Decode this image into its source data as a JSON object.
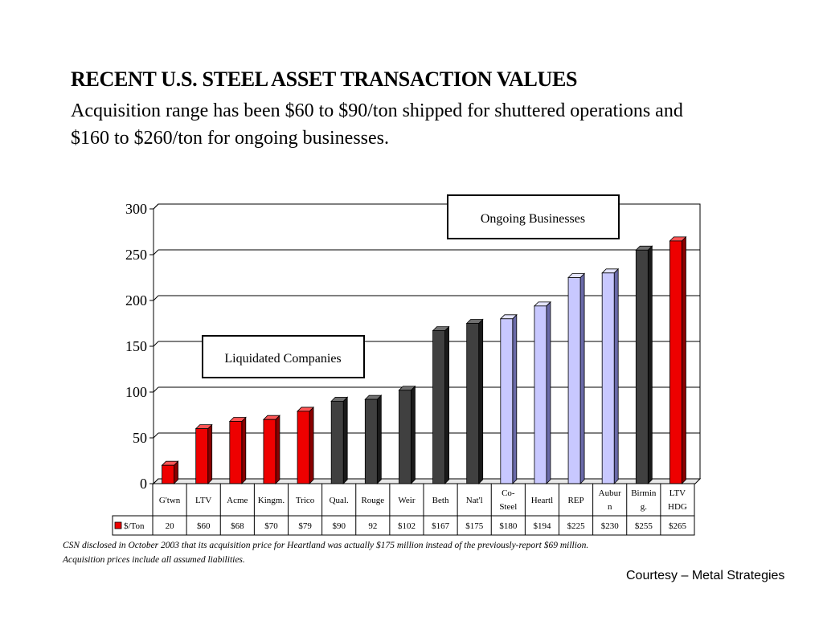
{
  "slide": {
    "title": "RECENT U.S. STEEL ASSET TRANSACTION VALUES",
    "subtitle": "Acquisition range has been $60 to $90/ton shipped for shuttered operations and $160 to $260/ton for ongoing businesses.",
    "footnote_line1": "CSN disclosed in October 2003 that its acquisition price for Heartland was actually $175 million instead of the previously-report $69 million.",
    "footnote_line2": "Acquisition prices include all assumed liabilities.",
    "credit": "Courtesy – Metal Strategies"
  },
  "chart_data": {
    "type": "bar",
    "title": "",
    "xlabel": "",
    "ylabel": "",
    "ylim": [
      0,
      300
    ],
    "yticks": [
      0,
      50,
      100,
      150,
      200,
      250,
      300
    ],
    "grid": true,
    "categories": [
      "G'twn",
      "LTV",
      "Acme",
      "Kingm.",
      "Trico",
      "Qual.",
      "Rouge",
      "Weir",
      "Beth",
      "Nat'l",
      "Co-Steel",
      "Heartl",
      "REP",
      "Auburn",
      "Birming.",
      "LTV HDG"
    ],
    "category_label_lines": [
      [
        "G'twn"
      ],
      [
        "LTV"
      ],
      [
        "Acme"
      ],
      [
        "Kingm."
      ],
      [
        "Trico"
      ],
      [
        "Qual."
      ],
      [
        "Rouge"
      ],
      [
        "Weir"
      ],
      [
        "Beth"
      ],
      [
        "Nat'l"
      ],
      [
        "Co-",
        "Steel"
      ],
      [
        "Heartl"
      ],
      [
        "REP"
      ],
      [
        "Aubur",
        "n"
      ],
      [
        "Birmin",
        "g."
      ],
      [
        "LTV",
        "HDG"
      ]
    ],
    "series": [
      {
        "name": "$/Ton",
        "values": [
          20,
          60,
          68,
          70,
          79,
          90,
          92,
          102,
          167,
          175,
          180,
          194,
          225,
          230,
          255,
          265
        ],
        "table_labels": [
          "20",
          "$60",
          "$68",
          "$70",
          "$79",
          "$90",
          "92",
          "$102",
          "$167",
          "$175",
          "$180",
          "$194",
          "$225",
          "$230",
          "$255",
          "$265"
        ],
        "groups": [
          "red",
          "red",
          "red",
          "red",
          "red",
          "dark",
          "dark",
          "dark",
          "dark",
          "dark",
          "light",
          "light",
          "light",
          "light",
          "dark",
          "red"
        ]
      }
    ],
    "colors": {
      "red": "#ee0000",
      "red_side": "#8a0000",
      "red_top": "#ff5555",
      "dark": "#404040",
      "dark_side": "#1a1a1a",
      "dark_top": "#707070",
      "light": "#c8c8ff",
      "light_side": "#6a6aa8",
      "light_top": "#e4e4ff",
      "legend_swatch": "#ee0000"
    },
    "annotations": [
      "Liquidated Companies",
      "Ongoing Businesses"
    ]
  }
}
